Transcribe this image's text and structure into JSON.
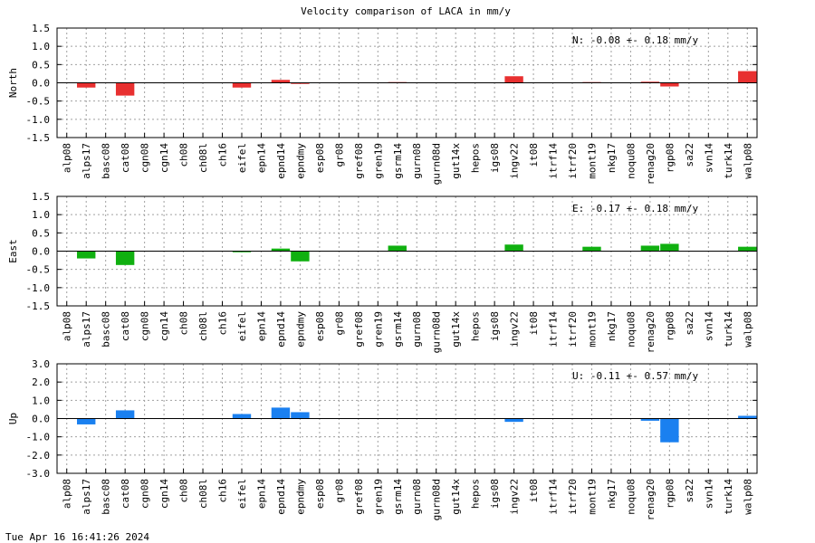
{
  "title": "Velocity comparison of LACA in mm/y",
  "timestamp": "Tue Apr 16 16:41:26 2024",
  "chart_data": [
    {
      "type": "bar",
      "ylabel": "North",
      "ylim": [
        -1.5,
        1.5
      ],
      "yticks": [
        1.5,
        1.0,
        0.5,
        0.0,
        -0.5,
        -1.0,
        -1.5
      ],
      "ytick_labels": [
        "1.5",
        "1.0",
        "0.5",
        "0.0",
        "-0.5",
        "-1.0",
        "-1.5"
      ],
      "grid": true,
      "color": "#e83030",
      "annotation": "N:  -0.08 +-  0.18 mm/y",
      "categories": [
        "alp08",
        "alps17",
        "basc08",
        "cat08",
        "cgn08",
        "cgn14",
        "ch08",
        "ch08l",
        "ch16",
        "eifel",
        "epn14",
        "epnd14",
        "epndmy",
        "esp08",
        "gr08",
        "gref08",
        "gren19",
        "gsrm14",
        "gurn08",
        "gurn08d",
        "gut14x",
        "hepos",
        "igs08",
        "ingv22",
        "it08",
        "itrf14",
        "itrf20",
        "mont19",
        "nkg17",
        "noqu08",
        "renag20",
        "rgp08",
        "sa22",
        "svn14",
        "turk14",
        "walp08"
      ],
      "values": [
        0,
        -0.13,
        0,
        -0.35,
        0,
        0,
        0,
        0,
        0,
        -0.13,
        0,
        0.08,
        -0.03,
        0,
        0,
        0,
        0,
        0.02,
        0,
        0,
        0,
        0,
        0,
        0.18,
        0,
        0,
        0,
        0.02,
        0,
        0,
        0.03,
        -0.1,
        0,
        0,
        0,
        0.32
      ]
    },
    {
      "type": "bar",
      "ylabel": "East",
      "ylim": [
        -1.5,
        1.5
      ],
      "yticks": [
        1.5,
        1.0,
        0.5,
        0.0,
        -0.5,
        -1.0,
        -1.5
      ],
      "ytick_labels": [
        "1.5",
        "1.0",
        "0.5",
        "0.0",
        "-0.5",
        "-1.0",
        "-1.5"
      ],
      "grid": true,
      "color": "#10b010",
      "annotation": "E:  -0.17 +-  0.18 mm/y",
      "categories": [
        "alp08",
        "alps17",
        "basc08",
        "cat08",
        "cgn08",
        "cgn14",
        "ch08",
        "ch08l",
        "ch16",
        "eifel",
        "epn14",
        "epnd14",
        "epndmy",
        "esp08",
        "gr08",
        "gref08",
        "gren19",
        "gsrm14",
        "gurn08",
        "gurn08d",
        "gut14x",
        "hepos",
        "igs08",
        "ingv22",
        "it08",
        "itrf14",
        "itrf20",
        "mont19",
        "nkg17",
        "noqu08",
        "renag20",
        "rgp08",
        "sa22",
        "svn14",
        "turk14",
        "walp08"
      ],
      "values": [
        0,
        -0.2,
        0,
        -0.38,
        0,
        0,
        0,
        0,
        0,
        -0.03,
        0,
        0.07,
        -0.28,
        0,
        0,
        0,
        0,
        0.15,
        0,
        0,
        0,
        0,
        0,
        0.18,
        0,
        0,
        0,
        0.12,
        0,
        0,
        0.15,
        0.2,
        0,
        0,
        0,
        0.12
      ]
    },
    {
      "type": "bar",
      "ylabel": "Up",
      "ylim": [
        -3.0,
        3.0
      ],
      "yticks": [
        3.0,
        2.0,
        1.0,
        0.0,
        -1.0,
        -2.0,
        -3.0
      ],
      "ytick_labels": [
        "3.0",
        "2.0",
        "1.0",
        "0.0",
        "-1.0",
        "-2.0",
        "-3.0"
      ],
      "grid": true,
      "color": "#1a80f0",
      "annotation": "U:  -0.11 +-  0.57 mm/y",
      "categories": [
        "alp08",
        "alps17",
        "basc08",
        "cat08",
        "cgn08",
        "cgn14",
        "ch08",
        "ch08l",
        "ch16",
        "eifel",
        "epn14",
        "epnd14",
        "epndmy",
        "esp08",
        "gr08",
        "gref08",
        "gren19",
        "gsrm14",
        "gurn08",
        "gurn08d",
        "gut14x",
        "hepos",
        "igs08",
        "ingv22",
        "it08",
        "itrf14",
        "itrf20",
        "mont19",
        "nkg17",
        "noqu08",
        "renag20",
        "rgp08",
        "sa22",
        "svn14",
        "turk14",
        "walp08"
      ],
      "values": [
        0,
        -0.32,
        0,
        0.45,
        0,
        0,
        0,
        0,
        0,
        0.25,
        0,
        0.6,
        0.35,
        0,
        0,
        0,
        0,
        0,
        0,
        0,
        0,
        0,
        0,
        -0.18,
        0,
        0,
        0,
        0,
        0,
        0,
        -0.12,
        -1.3,
        0,
        0,
        0,
        0.15
      ]
    }
  ]
}
